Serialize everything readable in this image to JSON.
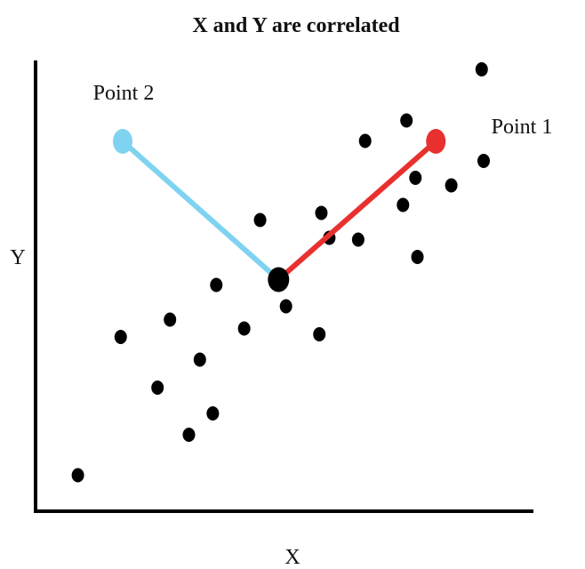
{
  "title": "X and Y are correlated",
  "x_axis_label": "X",
  "y_axis_label": "Y",
  "point_labels": {
    "point1": "Point 1",
    "point2": "Point 2"
  },
  "colors": {
    "dots": "#000000",
    "axes": "#000000",
    "point1": "#e8312f",
    "point2": "#7fd3f0"
  },
  "chart_data": {
    "type": "scatter",
    "x_range": [
      0,
      10
    ],
    "y_range": [
      0,
      10
    ],
    "points": [
      {
        "x": 0.85,
        "y": 0.81
      },
      {
        "x": 1.71,
        "y": 3.92
      },
      {
        "x": 2.45,
        "y": 2.78
      },
      {
        "x": 2.7,
        "y": 4.31
      },
      {
        "x": 3.08,
        "y": 1.72
      },
      {
        "x": 3.3,
        "y": 3.41
      },
      {
        "x": 3.56,
        "y": 2.2
      },
      {
        "x": 3.63,
        "y": 5.09
      },
      {
        "x": 4.19,
        "y": 4.11
      },
      {
        "x": 4.51,
        "y": 6.55
      },
      {
        "x": 5.03,
        "y": 4.61
      },
      {
        "x": 5.7,
        "y": 3.98
      },
      {
        "x": 5.74,
        "y": 6.71
      },
      {
        "x": 5.9,
        "y": 6.15
      },
      {
        "x": 6.48,
        "y": 6.11
      },
      {
        "x": 6.62,
        "y": 8.33
      },
      {
        "x": 7.38,
        "y": 6.89
      },
      {
        "x": 7.45,
        "y": 8.79
      },
      {
        "x": 7.63,
        "y": 7.5
      },
      {
        "x": 7.67,
        "y": 5.72
      },
      {
        "x": 8.35,
        "y": 7.33
      },
      {
        "x": 8.96,
        "y": 9.94
      },
      {
        "x": 9.0,
        "y": 7.88
      }
    ],
    "center": {
      "x": 4.88,
      "y": 5.21
    },
    "point1": {
      "x": 8.04,
      "y": 8.32
    },
    "point2": {
      "x": 1.75,
      "y": 8.32
    }
  }
}
